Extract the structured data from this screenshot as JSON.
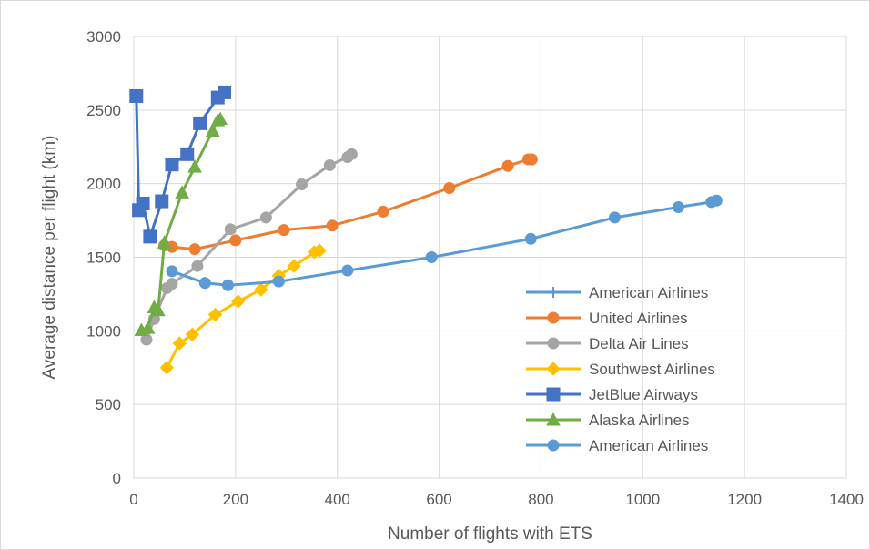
{
  "chart_data": {
    "type": "line",
    "title": "",
    "xlabel": "Number of flights with ETS",
    "ylabel": "Average distance per flight (km)",
    "xlim": [
      0,
      1400
    ],
    "ylim": [
      0,
      3000
    ],
    "x_ticks": [
      "0",
      "200",
      "400",
      "600",
      "800",
      "1000",
      "1200",
      "1400"
    ],
    "y_ticks": [
      "0",
      "500",
      "1000",
      "1500",
      "2000",
      "2500",
      "3000"
    ],
    "grid": "horizontal and vertical",
    "legend_position": "bottom-right",
    "series": [
      {
        "name": "American Airlines",
        "color": "#5b9bd5",
        "marker": "plus",
        "points": []
      },
      {
        "name": "United Airlines",
        "color": "#ed7d31",
        "marker": "circle",
        "points": [
          [
            60,
            1580
          ],
          [
            75,
            1570
          ],
          [
            120,
            1555
          ],
          [
            200,
            1615
          ],
          [
            295,
            1685
          ],
          [
            390,
            1715
          ],
          [
            490,
            1810
          ],
          [
            620,
            1970
          ],
          [
            735,
            2120
          ],
          [
            775,
            2165
          ],
          [
            782,
            2165
          ]
        ]
      },
      {
        "name": "Delta Air Lines",
        "color": "#a5a5a5",
        "marker": "circle",
        "points": [
          [
            25,
            940
          ],
          [
            40,
            1080
          ],
          [
            65,
            1290
          ],
          [
            75,
            1320
          ],
          [
            125,
            1440
          ],
          [
            190,
            1690
          ],
          [
            260,
            1770
          ],
          [
            330,
            1995
          ],
          [
            385,
            2125
          ],
          [
            420,
            2180
          ],
          [
            428,
            2200
          ]
        ]
      },
      {
        "name": "Southwest Airlines",
        "color": "#ffc000",
        "marker": "diamond",
        "points": [
          [
            65,
            750
          ],
          [
            90,
            915
          ],
          [
            115,
            975
          ],
          [
            160,
            1110
          ],
          [
            205,
            1200
          ],
          [
            250,
            1280
          ],
          [
            285,
            1375
          ],
          [
            315,
            1440
          ],
          [
            355,
            1535
          ],
          [
            365,
            1545
          ]
        ]
      },
      {
        "name": "JetBlue Airways",
        "color": "#4472c4",
        "marker": "square",
        "points": [
          [
            5,
            2595
          ],
          [
            10,
            1820
          ],
          [
            18,
            1865
          ],
          [
            32,
            1640
          ],
          [
            55,
            1880
          ],
          [
            75,
            2130
          ],
          [
            105,
            2200
          ],
          [
            130,
            2410
          ],
          [
            165,
            2585
          ],
          [
            178,
            2620
          ]
        ]
      },
      {
        "name": "Alaska Airlines",
        "color": "#70ad47",
        "marker": "triangle",
        "points": [
          [
            15,
            1005
          ],
          [
            28,
            1020
          ],
          [
            40,
            1160
          ],
          [
            48,
            1140
          ],
          [
            60,
            1600
          ],
          [
            95,
            1940
          ],
          [
            120,
            2115
          ],
          [
            155,
            2360
          ],
          [
            165,
            2430
          ],
          [
            170,
            2440
          ]
        ]
      },
      {
        "name": "American Airlines",
        "color": "#5b9bd5",
        "marker": "circle",
        "points": [
          [
            75,
            1405
          ],
          [
            140,
            1325
          ],
          [
            185,
            1310
          ],
          [
            285,
            1335
          ],
          [
            420,
            1410
          ],
          [
            585,
            1500
          ],
          [
            780,
            1625
          ],
          [
            945,
            1770
          ],
          [
            1070,
            1840
          ],
          [
            1135,
            1875
          ],
          [
            1145,
            1885
          ]
        ]
      }
    ]
  }
}
